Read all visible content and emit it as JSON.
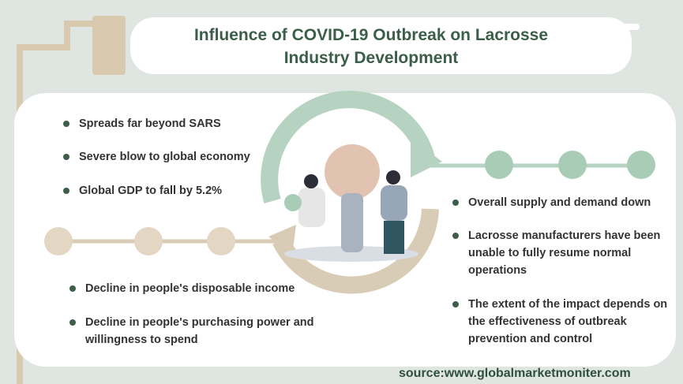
{
  "header": {
    "title_lines": [
      "Influence of COVID-19 Outbreak on Lacrosse",
      "Industry Development"
    ]
  },
  "left_top": [
    "Spreads far beyond SARS",
    "Severe blow to global economy",
    "Global GDP to fall by 5.2%"
  ],
  "left_bottom": [
    "Decline in people's disposable income",
    "Decline in people's purchasing power and willingness to spend"
  ],
  "right": [
    "Overall supply and demand down",
    "Lacrosse manufacturers have been unable to fully resume normal operations",
    "The extent of the impact depends on the effectiveness of outbreak prevention and control"
  ],
  "source": "source:www.globalmarketmoniter.com"
}
